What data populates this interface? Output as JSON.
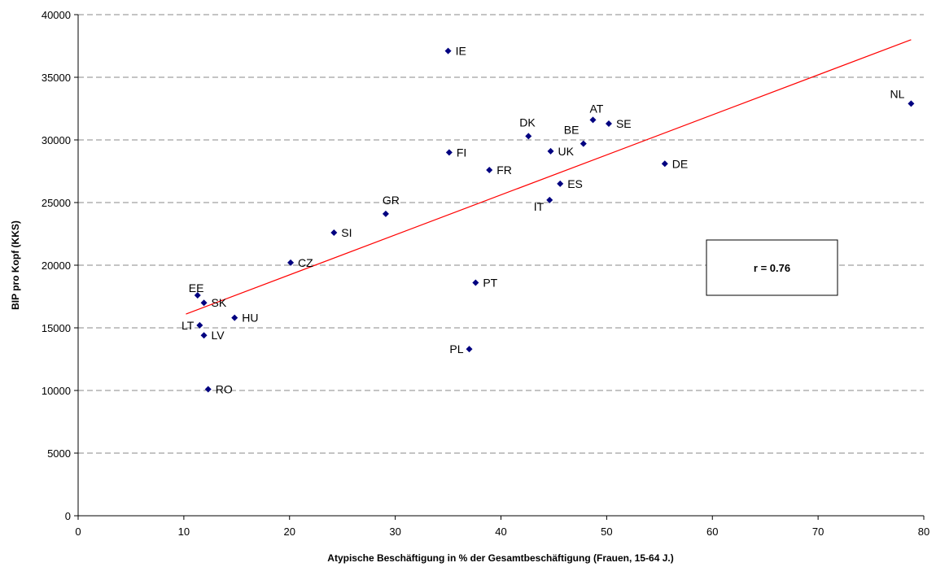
{
  "chart_data": {
    "type": "scatter",
    "xlabel": "Atypische Beschäftigung in % der Gesamtbeschäftigung (Frauen, 15-64 J.)",
    "ylabel": "BIP pro Kopf (KKS)",
    "xlim": [
      0,
      80
    ],
    "ylim": [
      0,
      40000
    ],
    "x_ticks": [
      0,
      10,
      20,
      30,
      40,
      50,
      60,
      70,
      80
    ],
    "y_ticks": [
      0,
      5000,
      10000,
      15000,
      20000,
      25000,
      30000,
      35000,
      40000
    ],
    "grid": "horizontal dashed",
    "marker_color": "#000080",
    "trendline_color": "#ff0000",
    "points": [
      {
        "label": "IE",
        "x": 35.0,
        "y": 37100
      },
      {
        "label": "NL",
        "x": 78.8,
        "y": 32900
      },
      {
        "label": "AT",
        "x": 48.7,
        "y": 31600
      },
      {
        "label": "SE",
        "x": 50.2,
        "y": 31300
      },
      {
        "label": "DK",
        "x": 42.6,
        "y": 30300
      },
      {
        "label": "BE",
        "x": 47.8,
        "y": 29700
      },
      {
        "label": "UK",
        "x": 44.7,
        "y": 29100
      },
      {
        "label": "FI",
        "x": 35.1,
        "y": 29000
      },
      {
        "label": "DE",
        "x": 55.5,
        "y": 28100
      },
      {
        "label": "FR",
        "x": 38.9,
        "y": 27600
      },
      {
        "label": "ES",
        "x": 45.6,
        "y": 26500
      },
      {
        "label": "IT",
        "x": 44.6,
        "y": 25200
      },
      {
        "label": "GR",
        "x": 29.1,
        "y": 24100
      },
      {
        "label": "SI",
        "x": 24.2,
        "y": 22600
      },
      {
        "label": "CZ",
        "x": 20.1,
        "y": 20200
      },
      {
        "label": "PT",
        "x": 37.6,
        "y": 18600
      },
      {
        "label": "EE",
        "x": 11.3,
        "y": 17600
      },
      {
        "label": "SK",
        "x": 11.9,
        "y": 17000
      },
      {
        "label": "HU",
        "x": 14.8,
        "y": 15800
      },
      {
        "label": "LT",
        "x": 11.5,
        "y": 15200
      },
      {
        "label": "LV",
        "x": 11.9,
        "y": 14400
      },
      {
        "label": "PL",
        "x": 37.0,
        "y": 13300
      },
      {
        "label": "RO",
        "x": 12.3,
        "y": 10100
      }
    ],
    "trendline": {
      "x": [
        10.2,
        78.8
      ],
      "y": [
        16100,
        38000
      ]
    },
    "annotation": "r = 0.76"
  }
}
